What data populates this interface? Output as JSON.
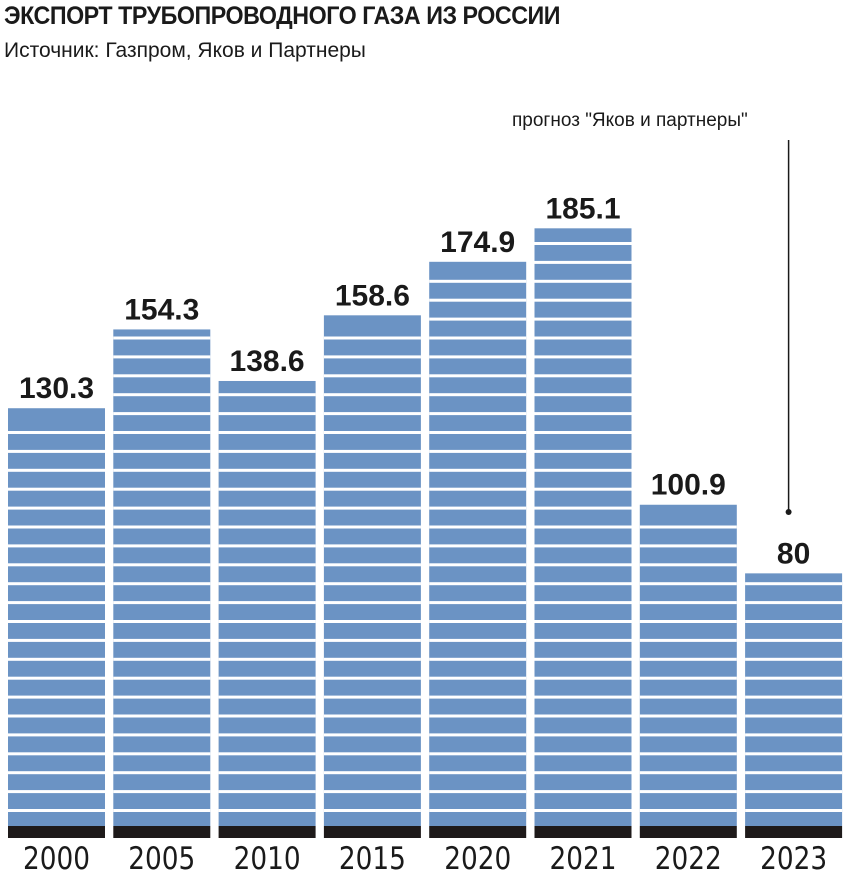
{
  "title": "ЭКСПОРТ ТРУБОПРОВОДНОГО ГАЗА ИЗ РОССИИ",
  "subtitle": "Источник: Газпром, Яков и Партнеры",
  "annotation": "прогноз \"Яков и партнеры\"",
  "chart_data": {
    "type": "bar",
    "title": "ЭКСПОРТ ТРУБОПРОВОДНОГО ГАЗА ИЗ РОССИИ",
    "categories": [
      "2000",
      "2005",
      "2010",
      "2015",
      "2020",
      "2021",
      "2022",
      "2023"
    ],
    "values": [
      130.3,
      154.3,
      138.6,
      158.6,
      174.9,
      185.1,
      100.9,
      80
    ],
    "labels": [
      "130.3",
      "154.3",
      "138.6",
      "158.6",
      "174.9",
      "185.1",
      "100.9",
      "80"
    ],
    "annotations": [
      {
        "category": "2023",
        "text": "прогноз \"Яков и партнеры\""
      }
    ],
    "ylim": [
      0,
      190
    ],
    "grid": false,
    "colors": {
      "bar": "#6b93c4",
      "base": "#1e1a1a",
      "stripe": "#ffffff"
    }
  }
}
